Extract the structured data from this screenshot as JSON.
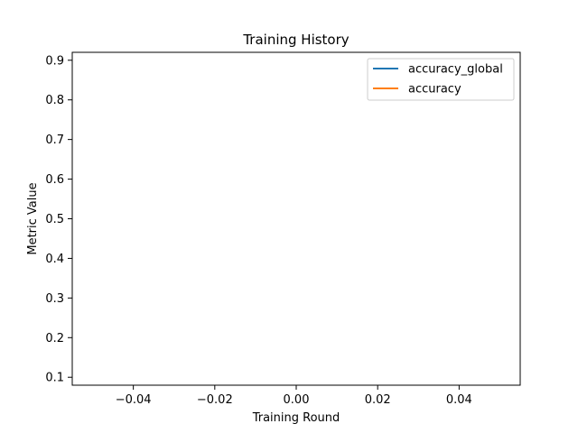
{
  "chart_data": {
    "type": "line",
    "title": "Training History",
    "xlabel": "Training Round",
    "ylabel": "Metric Value",
    "xlim": [
      -0.055,
      0.055
    ],
    "ylim": [
      0.08,
      0.92
    ],
    "xticks": [
      -0.04,
      -0.02,
      0.0,
      0.02,
      0.04
    ],
    "xtick_labels": [
      "−0.04",
      "−0.02",
      "0.00",
      "0.02",
      "0.04"
    ],
    "yticks": [
      0.1,
      0.2,
      0.3,
      0.4,
      0.5,
      0.6,
      0.7,
      0.8,
      0.9
    ],
    "ytick_labels": [
      "0.1",
      "0.2",
      "0.3",
      "0.4",
      "0.5",
      "0.6",
      "0.7",
      "0.8",
      "0.9"
    ],
    "grid": false,
    "legend_position": "top-right",
    "series": [
      {
        "name": "accuracy_global",
        "color": "#1f77b4",
        "x": [],
        "y": []
      },
      {
        "name": "accuracy",
        "color": "#ff7f0e",
        "x": [],
        "y": []
      }
    ]
  }
}
